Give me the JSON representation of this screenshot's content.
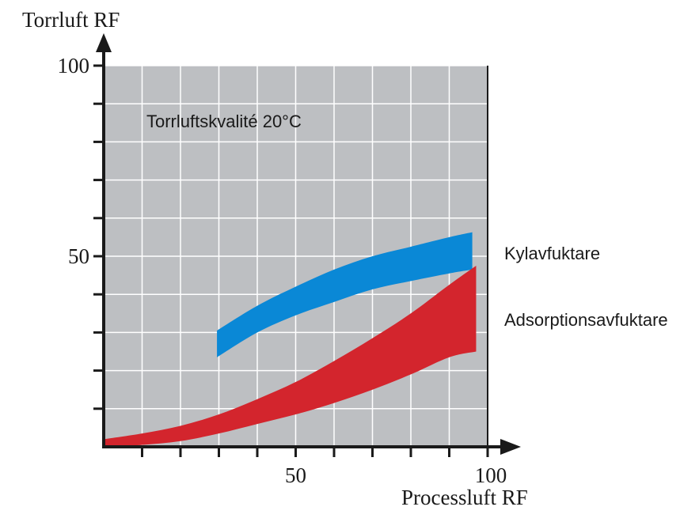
{
  "chart_data": {
    "type": "area",
    "ylabel": "Torrluft RF",
    "xlabel": "Processluft RF",
    "annotation": "Torrluftskvalité 20°C",
    "xlim": [
      0,
      100
    ],
    "ylim": [
      0,
      100
    ],
    "x_ticks": [
      10,
      20,
      30,
      40,
      50,
      60,
      70,
      80,
      90,
      100
    ],
    "y_ticks": [
      10,
      20,
      30,
      40,
      50,
      60,
      70,
      80,
      90,
      100
    ],
    "x_tick_labels": [
      {
        "value": 50,
        "label": "50"
      },
      {
        "value": 100,
        "label": "100"
      }
    ],
    "y_tick_labels": [
      {
        "value": 50,
        "label": "50"
      },
      {
        "value": 100,
        "label": "100"
      }
    ],
    "grid": true,
    "series": [
      {
        "name": "Kylavfuktare",
        "color": "#0a88d6",
        "upper": [
          [
            29.5,
            30.5
          ],
          [
            40,
            37
          ],
          [
            50,
            42
          ],
          [
            60,
            46.5
          ],
          [
            70,
            50
          ],
          [
            80,
            52.5
          ],
          [
            90,
            55
          ],
          [
            96,
            56.3
          ]
        ],
        "lower": [
          [
            29.5,
            23.5
          ],
          [
            40,
            30
          ],
          [
            50,
            34.5
          ],
          [
            60,
            38
          ],
          [
            70,
            41.3
          ],
          [
            80,
            43.5
          ],
          [
            90,
            45.5
          ],
          [
            96,
            46.5
          ]
        ]
      },
      {
        "name": "Adsorptionsavfuktare",
        "color": "#d3252d",
        "upper": [
          [
            0,
            2
          ],
          [
            10,
            3.5
          ],
          [
            20,
            5.5
          ],
          [
            30,
            8.5
          ],
          [
            40,
            12.5
          ],
          [
            50,
            17
          ],
          [
            60,
            22.5
          ],
          [
            70,
            28.5
          ],
          [
            80,
            35
          ],
          [
            90,
            42.5
          ],
          [
            97,
            47.5
          ]
        ],
        "lower": [
          [
            0,
            0
          ],
          [
            10,
            0.5
          ],
          [
            20,
            1.5
          ],
          [
            30,
            3.5
          ],
          [
            40,
            6
          ],
          [
            50,
            8.5
          ],
          [
            60,
            11.5
          ],
          [
            70,
            15
          ],
          [
            80,
            19
          ],
          [
            90,
            23.5
          ],
          [
            97,
            25
          ]
        ]
      }
    ]
  },
  "colors": {
    "plot_background": "#bdbfc2",
    "grid": "#ffffff",
    "axis": "#1a1a1a"
  }
}
